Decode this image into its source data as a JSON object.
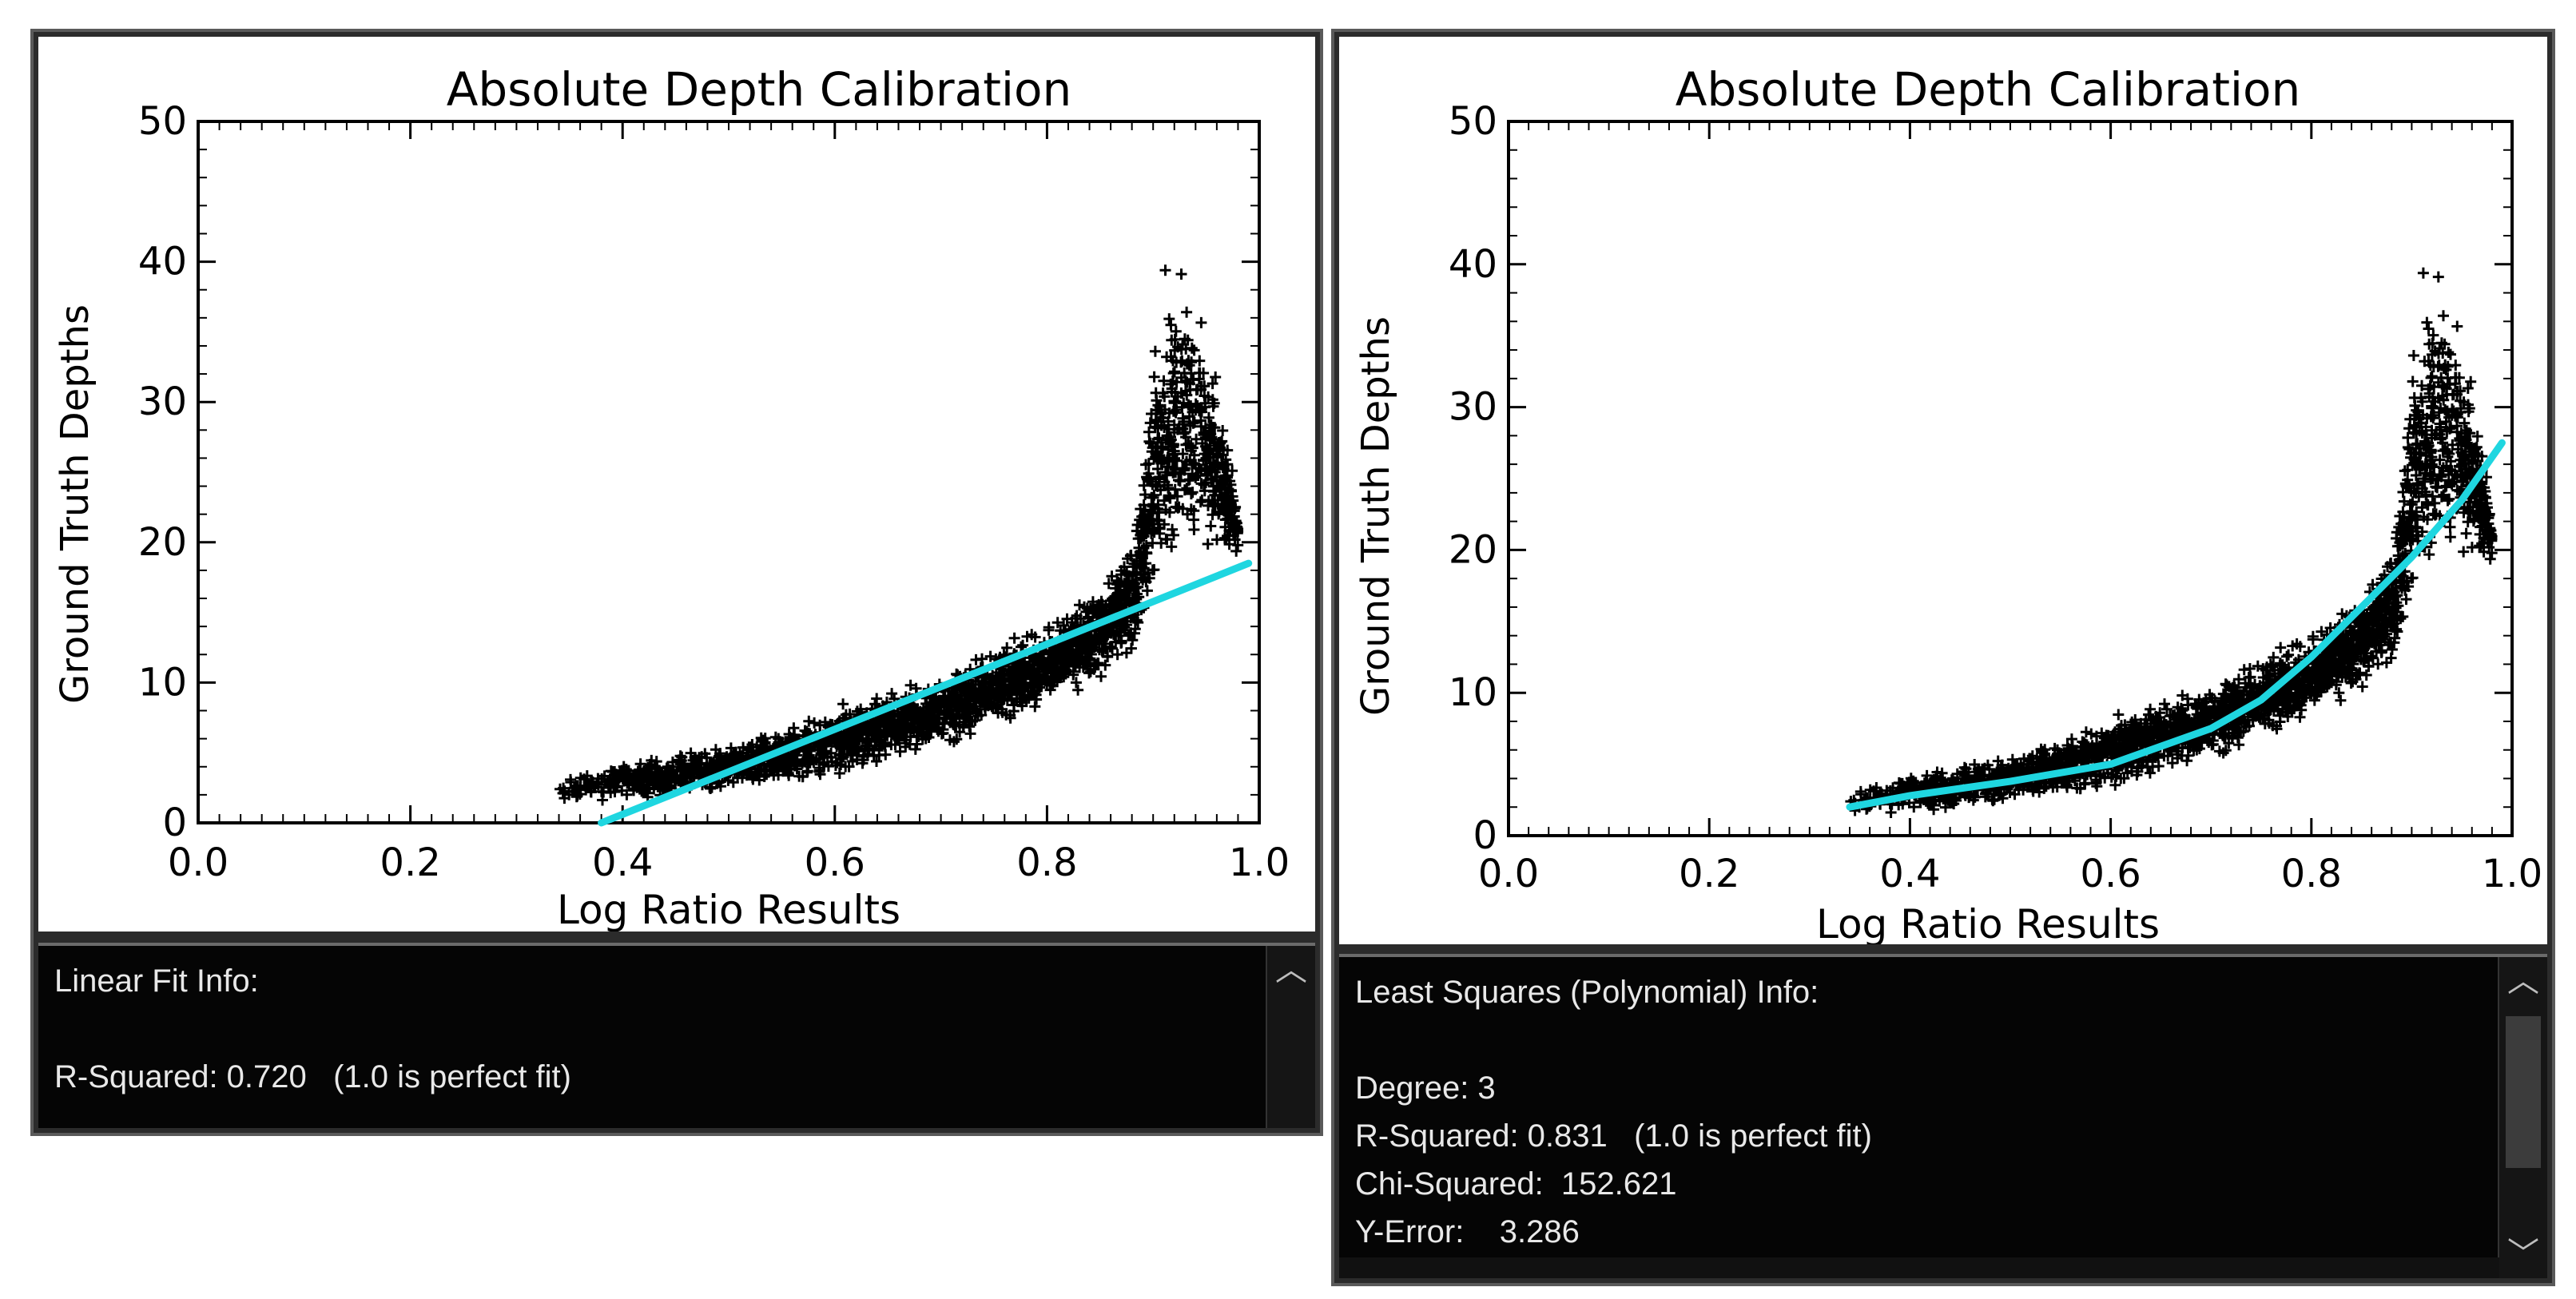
{
  "colors": {
    "points": "#000000",
    "fit_line": "#1fd6e0",
    "info_background": "#050505",
    "info_text": "#e8e8e8"
  },
  "left": {
    "info": {
      "heading": "Linear Fit Info:",
      "r_squared": "R-Squared: 0.720   (1.0 is perfect fit)"
    }
  },
  "right": {
    "info": {
      "heading": "Least Squares (Polynomial) Info:",
      "degree": "Degree: 3",
      "r_squared": "R-Squared: 0.831   (1.0 is perfect fit)",
      "chi_squared": "Chi-Squared:  152.621",
      "y_error": "Y-Error:    3.286"
    }
  },
  "chart_data": [
    {
      "type": "scatter",
      "title": "Absolute Depth Calibration",
      "xlabel": "Log Ratio Results",
      "ylabel": "Ground Truth Depths",
      "xlim": [
        0.0,
        1.0
      ],
      "ylim": [
        0,
        50
      ],
      "xticks": [
        "0.0",
        "0.2",
        "0.4",
        "0.6",
        "0.8",
        "1.0"
      ],
      "yticks": [
        "0",
        "10",
        "20",
        "30",
        "40",
        "50"
      ],
      "grid": false,
      "point_marker": "+",
      "point_cloud_envelope": [
        {
          "x": 0.34,
          "ymin": 1.5,
          "ymax": 3.0
        },
        {
          "x": 0.4,
          "ymin": 1.5,
          "ymax": 4.5
        },
        {
          "x": 0.5,
          "ymin": 2.0,
          "ymax": 6.0
        },
        {
          "x": 0.6,
          "ymin": 3.0,
          "ymax": 8.5
        },
        {
          "x": 0.7,
          "ymin": 5.0,
          "ymax": 11.0
        },
        {
          "x": 0.8,
          "ymin": 8.0,
          "ymax": 14.5
        },
        {
          "x": 0.85,
          "ymin": 10.0,
          "ymax": 17.5
        },
        {
          "x": 0.88,
          "ymin": 11.0,
          "ymax": 21.0
        },
        {
          "x": 0.91,
          "ymin": 14.0,
          "ymax": 40.0
        },
        {
          "x": 0.93,
          "ymin": 17.0,
          "ymax": 41.5
        },
        {
          "x": 0.96,
          "ymin": 18.0,
          "ymax": 33.0
        },
        {
          "x": 0.98,
          "ymin": 19.0,
          "ymax": 23.0
        }
      ],
      "fit": {
        "name": "",
        "kind": "linear",
        "x": [
          0.38,
          0.99
        ],
        "y": [
          0.0,
          18.5
        ]
      }
    },
    {
      "type": "scatter",
      "title": "Absolute Depth Calibration",
      "xlabel": "Log Ratio Results",
      "ylabel": "Ground Truth Depths",
      "xlim": [
        0.0,
        1.0
      ],
      "ylim": [
        0,
        50
      ],
      "xticks": [
        "0.0",
        "0.2",
        "0.4",
        "0.6",
        "0.8",
        "1.0"
      ],
      "yticks": [
        "0",
        "10",
        "20",
        "30",
        "40",
        "50"
      ],
      "grid": false,
      "point_marker": "+",
      "point_cloud_envelope": [
        {
          "x": 0.34,
          "ymin": 1.5,
          "ymax": 3.0
        },
        {
          "x": 0.4,
          "ymin": 1.5,
          "ymax": 4.5
        },
        {
          "x": 0.5,
          "ymin": 2.0,
          "ymax": 6.0
        },
        {
          "x": 0.6,
          "ymin": 3.0,
          "ymax": 8.5
        },
        {
          "x": 0.7,
          "ymin": 5.0,
          "ymax": 11.0
        },
        {
          "x": 0.8,
          "ymin": 8.0,
          "ymax": 14.5
        },
        {
          "x": 0.85,
          "ymin": 10.0,
          "ymax": 17.5
        },
        {
          "x": 0.88,
          "ymin": 11.0,
          "ymax": 21.0
        },
        {
          "x": 0.91,
          "ymin": 14.0,
          "ymax": 40.0
        },
        {
          "x": 0.93,
          "ymin": 17.0,
          "ymax": 41.5
        },
        {
          "x": 0.96,
          "ymin": 18.0,
          "ymax": 33.0
        },
        {
          "x": 0.98,
          "ymin": 19.0,
          "ymax": 23.0
        }
      ],
      "fit": {
        "name": "",
        "kind": "polynomial",
        "degree": 3,
        "x": [
          0.34,
          0.4,
          0.5,
          0.6,
          0.7,
          0.75,
          0.8,
          0.85,
          0.9,
          0.95,
          0.99
        ],
        "y": [
          2.0,
          2.8,
          3.8,
          5.0,
          7.5,
          9.5,
          12.5,
          16.0,
          19.5,
          23.5,
          27.5
        ]
      }
    }
  ]
}
